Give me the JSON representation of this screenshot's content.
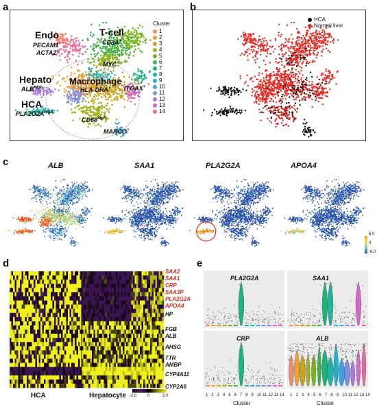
{
  "panels": {
    "a": {
      "letter": "a",
      "legend_title": "Cluster",
      "clusters": [
        {
          "label": "1",
          "color": "#f08c6e"
        },
        {
          "label": "2",
          "color": "#e8a33a"
        },
        {
          "label": "3",
          "color": "#c9a31f"
        },
        {
          "label": "4",
          "color": "#a6b21c"
        },
        {
          "label": "5",
          "color": "#7ab41c"
        },
        {
          "label": "6",
          "color": "#3fb34a"
        },
        {
          "label": "7",
          "color": "#1fb37a"
        },
        {
          "label": "8",
          "color": "#1fb3a6"
        },
        {
          "label": "9",
          "color": "#25b0c9"
        },
        {
          "label": "10",
          "color": "#3ea3dc"
        },
        {
          "label": "11",
          "color": "#7f8fe0"
        },
        {
          "label": "12",
          "color": "#a978dc"
        },
        {
          "label": "13",
          "color": "#d468c6"
        },
        {
          "label": "14",
          "color": "#e86aa0"
        }
      ],
      "labels": {
        "endo": "Endo",
        "pecam1": "PECAM1",
        "acta2": "ACTA2",
        "tcell": "T-cell",
        "cd8a": "CD8A",
        "myc": "MYC",
        "hepato": "Hepato",
        "alb": "ALB",
        "macrophage": "Macrophage",
        "hla": "HLA-DRA",
        "itgax": "ITGAX",
        "hca": "HCA",
        "pla2g2a": "PLA2G2A",
        "cd68": "CD68",
        "marco": "MARCO",
        "high": "high",
        "plus": "+",
        "minus": "-"
      }
    },
    "b": {
      "letter": "b",
      "legend": [
        {
          "label": "HCA",
          "color": "#111111"
        },
        {
          "label": "Normal liver",
          "color": "#e8261e"
        }
      ]
    },
    "c": {
      "letter": "c",
      "genes": [
        "ALB",
        "SAA1",
        "PLA2G2A",
        "APOA4"
      ],
      "scale": [
        "6.0",
        "0",
        "-6.0"
      ]
    },
    "d": {
      "letter": "d",
      "genes": [
        {
          "name": "SAA2",
          "color": "#e8261e"
        },
        {
          "name": "SAA1",
          "color": "#e8261e"
        },
        {
          "name": "CRP",
          "color": "#e8261e"
        },
        {
          "name": "SAA3P",
          "color": "#e8261e"
        },
        {
          "name": "PLA2G2A",
          "color": "#e8261e"
        },
        {
          "name": "APOA4",
          "color": "#e8261e"
        },
        {
          "name": "HP",
          "color": "#111111"
        },
        {
          "name": "FGB",
          "color": "#111111"
        },
        {
          "name": "ALB",
          "color": "#111111"
        },
        {
          "name": "AHSG",
          "color": "#111111"
        },
        {
          "name": "TTR",
          "color": "#111111"
        },
        {
          "name": "AMBP",
          "color": "#111111"
        },
        {
          "name": "CYP4A11",
          "color": "#111111"
        },
        {
          "name": "CYP2A6",
          "color": "#111111"
        }
      ],
      "groups": [
        "HCA",
        "Hepatocyte"
      ],
      "scale": [
        "-2.0",
        "0",
        "2.0"
      ]
    },
    "e": {
      "letter": "e",
      "violins": [
        "PLA2G2A",
        "SAA1",
        "CRP",
        "ALB"
      ],
      "ticks": [
        "1",
        "2",
        "3",
        "4",
        "5",
        "6",
        "7",
        "8",
        "9",
        "10",
        "11",
        "12",
        "13",
        "14"
      ],
      "xlabel": "Cluster"
    }
  }
}
